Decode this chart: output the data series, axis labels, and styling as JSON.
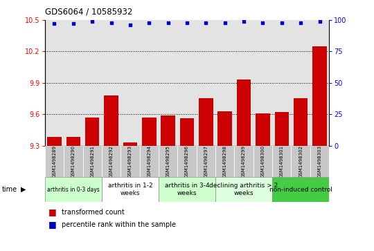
{
  "title": "GDS6064 / 10585932",
  "samples": [
    "GSM1498289",
    "GSM1498290",
    "GSM1498291",
    "GSM1498292",
    "GSM1498293",
    "GSM1498294",
    "GSM1498295",
    "GSM1498296",
    "GSM1498297",
    "GSM1498298",
    "GSM1498299",
    "GSM1498300",
    "GSM1498301",
    "GSM1498302",
    "GSM1498303"
  ],
  "bar_values": [
    9.38,
    9.38,
    9.57,
    9.78,
    9.33,
    9.57,
    9.59,
    9.56,
    9.75,
    9.63,
    9.93,
    9.61,
    9.62,
    9.75,
    10.25
  ],
  "percentile_values": [
    97,
    97,
    99,
    98,
    96,
    98,
    98,
    98,
    98,
    98,
    99,
    98,
    98,
    98,
    99
  ],
  "bar_color": "#cc0000",
  "dot_color": "#0000cc",
  "ylim_left": [
    9.3,
    10.5
  ],
  "ylim_right": [
    0,
    100
  ],
  "yticks_left": [
    9.3,
    9.6,
    9.9,
    10.2,
    10.5
  ],
  "yticks_right": [
    0,
    25,
    50,
    75,
    100
  ],
  "grid_values": [
    9.6,
    9.9,
    10.2
  ],
  "groups": [
    {
      "label": "arthritis in 0-3 days",
      "start": 0,
      "end": 3,
      "color": "#ccffcc"
    },
    {
      "label": "arthritis in 1-2\nweeks",
      "start": 3,
      "end": 6,
      "color": "#ffffff"
    },
    {
      "label": "arthritis in 3-4\nweeks",
      "start": 6,
      "end": 9,
      "color": "#ccffcc"
    },
    {
      "label": "declining arthritis > 2\nweeks",
      "start": 9,
      "end": 12,
      "color": "#ddffdd"
    },
    {
      "label": "non-induced control",
      "start": 12,
      "end": 15,
      "color": "#44cc44"
    }
  ],
  "group_colors": [
    "#ccffcc",
    "#ffffff",
    "#ccffcc",
    "#ddffdd",
    "#44cc44"
  ],
  "col_bg_color": "#c8c8c8",
  "legend_bar_label": "transformed count",
  "legend_dot_label": "percentile rank within the sample"
}
